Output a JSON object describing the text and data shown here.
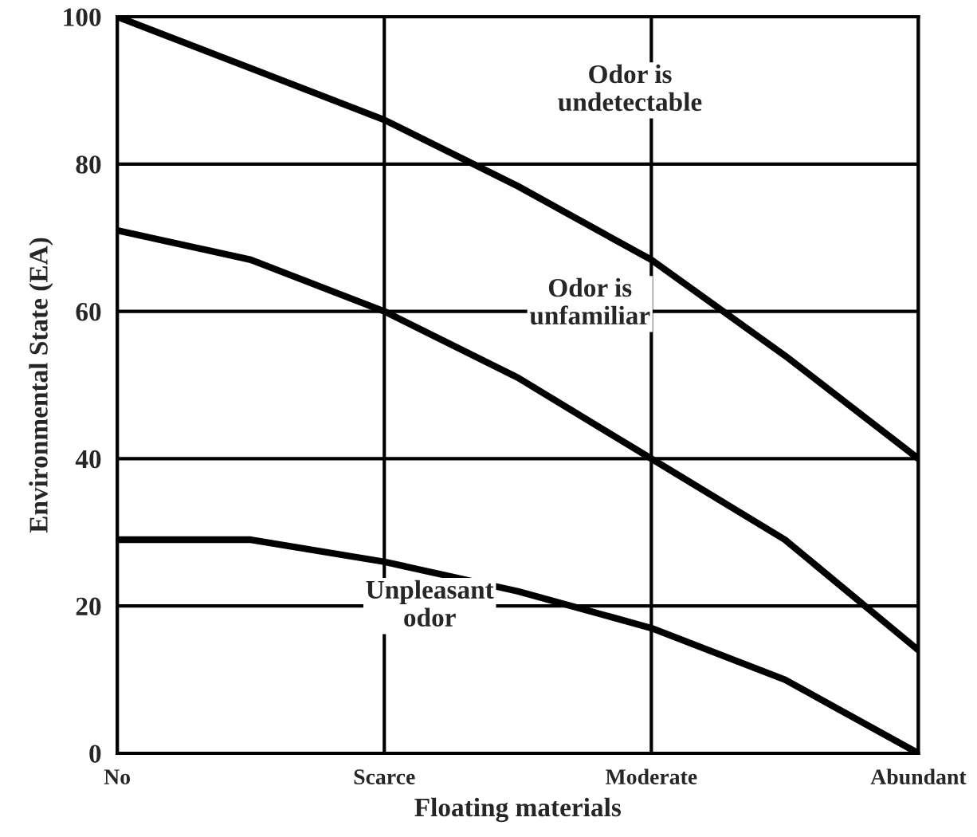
{
  "chart_data": {
    "type": "line",
    "xlabel": "Floating materials",
    "ylabel": "Environmental State (EA)",
    "categories": [
      "No",
      null,
      "Scarce",
      null,
      "Moderate",
      null,
      "Abundant"
    ],
    "series": [
      {
        "color": "#000000",
        "values": [
          100,
          93,
          86,
          77,
          67,
          54,
          40
        ]
      },
      {
        "color": "#000000",
        "values": [
          71,
          67,
          60,
          51,
          40,
          29,
          14
        ]
      },
      {
        "color": "#000000",
        "values": [
          29,
          29,
          26,
          22,
          17,
          10,
          0
        ]
      }
    ],
    "ylim": [
      0,
      100
    ],
    "yticks": [
      0,
      20,
      40,
      60,
      80,
      100
    ],
    "grid": true,
    "marker": "none",
    "line_style": "solid",
    "annotations": [
      "Odor is\nundetectable",
      "Odor is\nunfamiliar",
      "Unpleasant\nodor"
    ]
  }
}
